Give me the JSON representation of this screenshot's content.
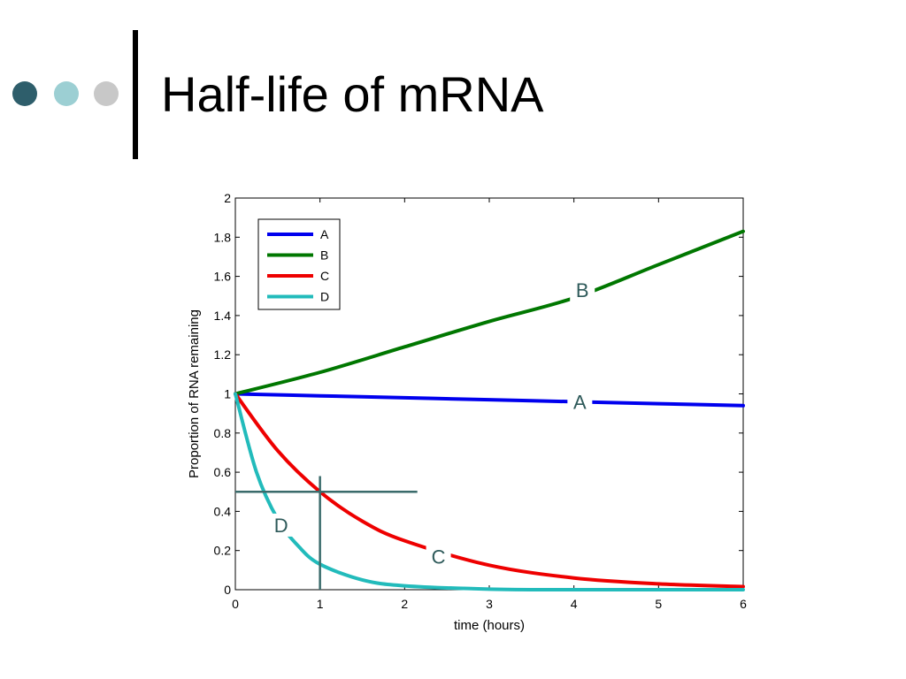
{
  "slide": {
    "title": "Half-life of mRNA",
    "bullet_colors": [
      "#2e5e6b",
      "#9ccfd3",
      "#c8c8c8"
    ],
    "title_bar_color": "#000000"
  },
  "chart_data": {
    "type": "line",
    "title": "",
    "xlabel": "time (hours)",
    "ylabel": "Proportion of RNA remaining",
    "xlim": [
      0,
      6
    ],
    "ylim": [
      0,
      2
    ],
    "xticks": [
      "0",
      "1",
      "2",
      "3",
      "4",
      "5",
      "6"
    ],
    "yticks": [
      "0",
      "0.2",
      "0.4",
      "0.6",
      "0.8",
      "1",
      "1.2",
      "1.4",
      "1.6",
      "1.8",
      "2"
    ],
    "grid": false,
    "legend_position": "top-left",
    "series": [
      {
        "name": "A",
        "color": "#0000ee",
        "x": [
          0,
          1,
          2,
          3,
          4,
          5,
          6
        ],
        "y": [
          1.0,
          0.99,
          0.98,
          0.97,
          0.96,
          0.95,
          0.94
        ]
      },
      {
        "name": "B",
        "color": "#007700",
        "x": [
          0,
          1,
          2,
          3,
          4,
          5,
          6
        ],
        "y": [
          1.0,
          1.11,
          1.24,
          1.37,
          1.49,
          1.66,
          1.83
        ]
      },
      {
        "name": "C",
        "color": "#ee0000",
        "x": [
          0,
          0.5,
          1,
          1.5,
          2,
          3,
          4,
          5,
          6
        ],
        "y": [
          1.0,
          0.71,
          0.5,
          0.35,
          0.25,
          0.125,
          0.06,
          0.03,
          0.016
        ]
      },
      {
        "name": "D",
        "color": "#22bbbb",
        "x": [
          0,
          0.25,
          0.5,
          0.75,
          1,
          1.5,
          2,
          3,
          4,
          6
        ],
        "y": [
          1.0,
          0.6,
          0.36,
          0.22,
          0.13,
          0.05,
          0.02,
          0.003,
          0.0,
          0.0
        ]
      }
    ],
    "annotations": [
      {
        "text": "B",
        "x": 4.1,
        "y": 1.53,
        "series": "B"
      },
      {
        "text": "A",
        "x": 4.07,
        "y": 0.96,
        "series": "A"
      },
      {
        "text": "C",
        "x": 2.4,
        "y": 0.17,
        "series": "C"
      },
      {
        "text": "D",
        "x": 0.54,
        "y": 0.33,
        "series": "D"
      }
    ],
    "guide_lines": {
      "color": "#3a6b6b",
      "horizontal": {
        "y": 0.5,
        "x_from": 0,
        "x_to": 2.15
      },
      "vertical": {
        "x": 1,
        "y_from": 0,
        "y_to": 0.58
      }
    }
  }
}
